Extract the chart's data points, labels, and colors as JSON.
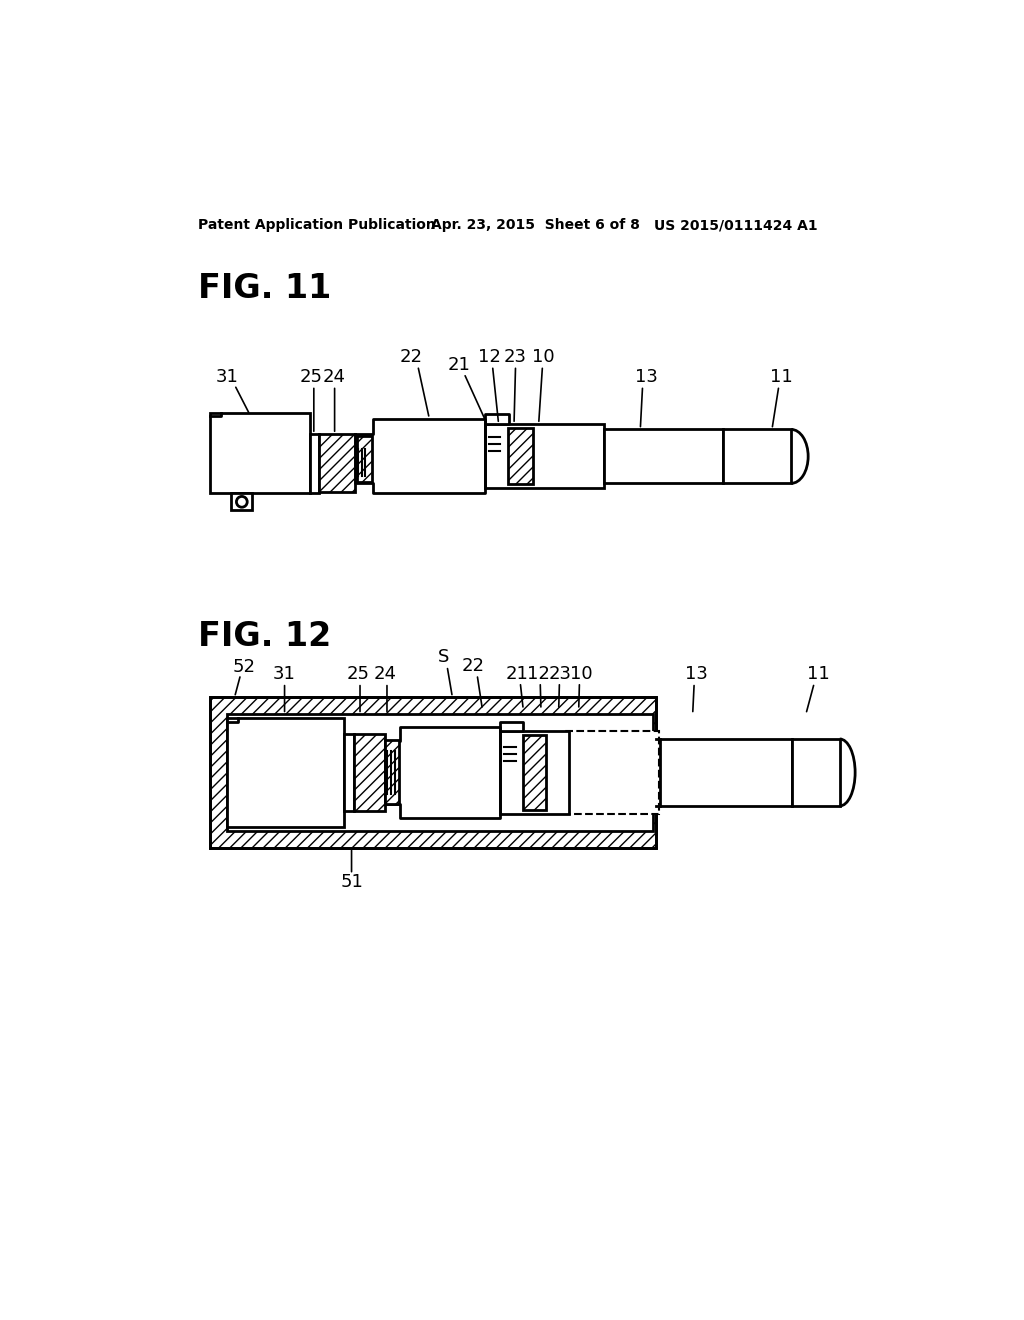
{
  "background_color": "#ffffff",
  "header_left": "Patent Application Publication",
  "header_center": "Apr. 23, 2015  Sheet 6 of 8",
  "header_right": "US 2015/0111424 A1",
  "fig11_label": "FIG. 11",
  "fig12_label": "FIG. 12",
  "line_color": "#000000",
  "lw": 2.0
}
